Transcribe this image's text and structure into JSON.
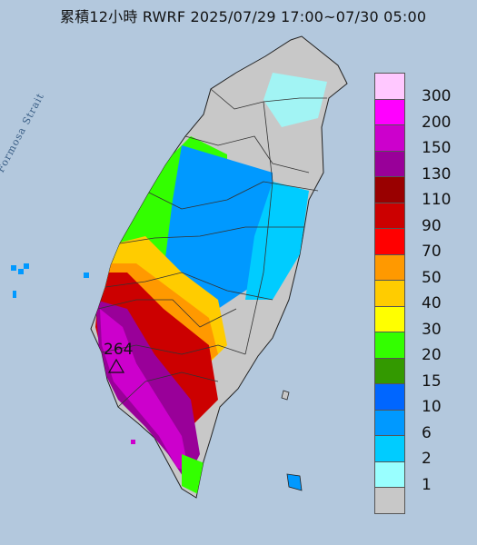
{
  "header": {
    "title": "累積12小時 RWRF 2025/07/29 17:00~07/30 05:00"
  },
  "map": {
    "sea_label": "Formosa Strait",
    "peak_marker_value": "264",
    "background_color": "#b9cde0",
    "land_color": "#c8c8c8"
  },
  "legend": {
    "items": [
      {
        "label": "300",
        "color": "#ffc8ff"
      },
      {
        "label": "200",
        "color": "#ff00ff"
      },
      {
        "label": "150",
        "color": "#cc00cc"
      },
      {
        "label": "130",
        "color": "#990099"
      },
      {
        "label": "110",
        "color": "#990000"
      },
      {
        "label": "90",
        "color": "#cc0000"
      },
      {
        "label": "70",
        "color": "#ff0000"
      },
      {
        "label": "50",
        "color": "#ff9900"
      },
      {
        "label": "40",
        "color": "#ffcc00"
      },
      {
        "label": "30",
        "color": "#ffff00"
      },
      {
        "label": "20",
        "color": "#33ff00"
      },
      {
        "label": "15",
        "color": "#339900"
      },
      {
        "label": "10",
        "color": "#0066ff"
      },
      {
        "label": "6",
        "color": "#0099ff"
      },
      {
        "label": "2",
        "color": "#00ccff"
      },
      {
        "label": "1",
        "color": "#99ffff"
      },
      {
        "label": "",
        "color": "#c8c8c8"
      }
    ]
  }
}
